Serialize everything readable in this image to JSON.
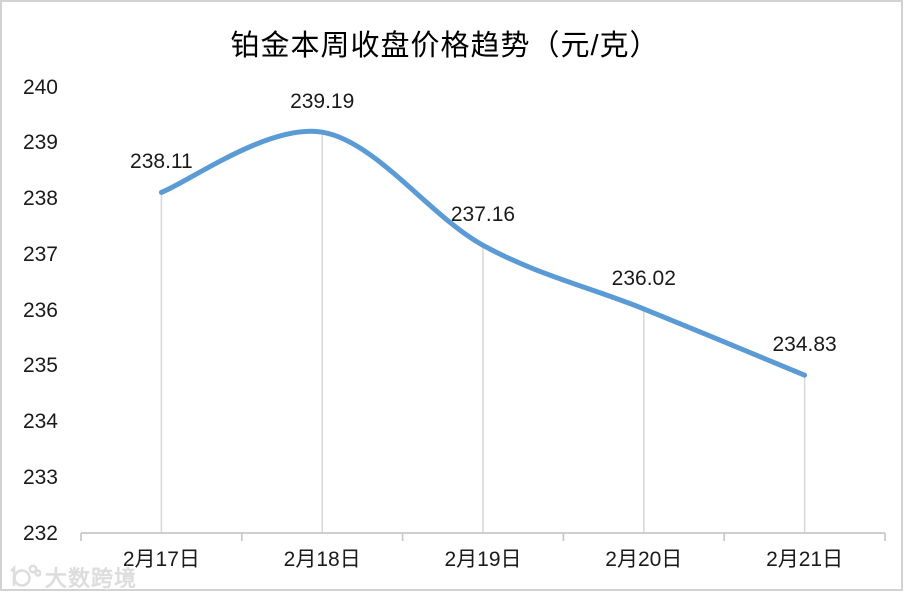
{
  "chart_data": {
    "type": "line",
    "title": "铂金本周收盘价格趋势（元/克）",
    "categories": [
      "2月17日",
      "2月18日",
      "2月19日",
      "2月20日",
      "2月21日"
    ],
    "values": [
      238.11,
      239.19,
      237.16,
      236.02,
      234.83
    ],
    "data_labels": [
      "238.11",
      "239.19",
      "237.16",
      "236.02",
      "234.83"
    ],
    "y_ticks": [
      240,
      239,
      238,
      237,
      236,
      235,
      234,
      233,
      232
    ],
    "ylim": [
      232,
      240
    ],
    "xlabel": "",
    "ylabel": "",
    "legend_position": "none",
    "grid": "off",
    "droplines": "on",
    "smooth_line": true,
    "colors": {
      "line": "#5B9BD5",
      "dropline": "#d9d9d9",
      "axis": "#c8c8c8",
      "label_text": "#1a1a1a",
      "title_text": "#000000"
    }
  },
  "watermark": {
    "logo_icon": "shuzi-kuajing-logo",
    "text": "大数跨境"
  }
}
